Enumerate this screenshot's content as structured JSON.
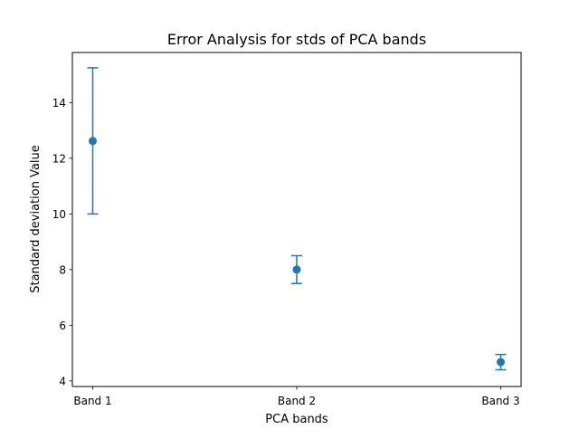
{
  "chart_data": {
    "type": "scatter",
    "title": "Error Analysis for stds of PCA bands",
    "xlabel": "PCA bands",
    "ylabel": "Standard deviation Value",
    "categories": [
      "Band 1",
      "Band 2",
      "Band 3"
    ],
    "series": [
      {
        "values": [
          12.62,
          8.0,
          4.68
        ],
        "error_low": [
          10.0,
          7.5,
          4.4
        ],
        "error_high": [
          15.25,
          8.5,
          4.95
        ],
        "color": "#1f77b4"
      }
    ],
    "yticks": [
      4,
      6,
      8,
      10,
      12,
      14
    ],
    "ylim": [
      3.8,
      15.8
    ],
    "grid": false
  }
}
